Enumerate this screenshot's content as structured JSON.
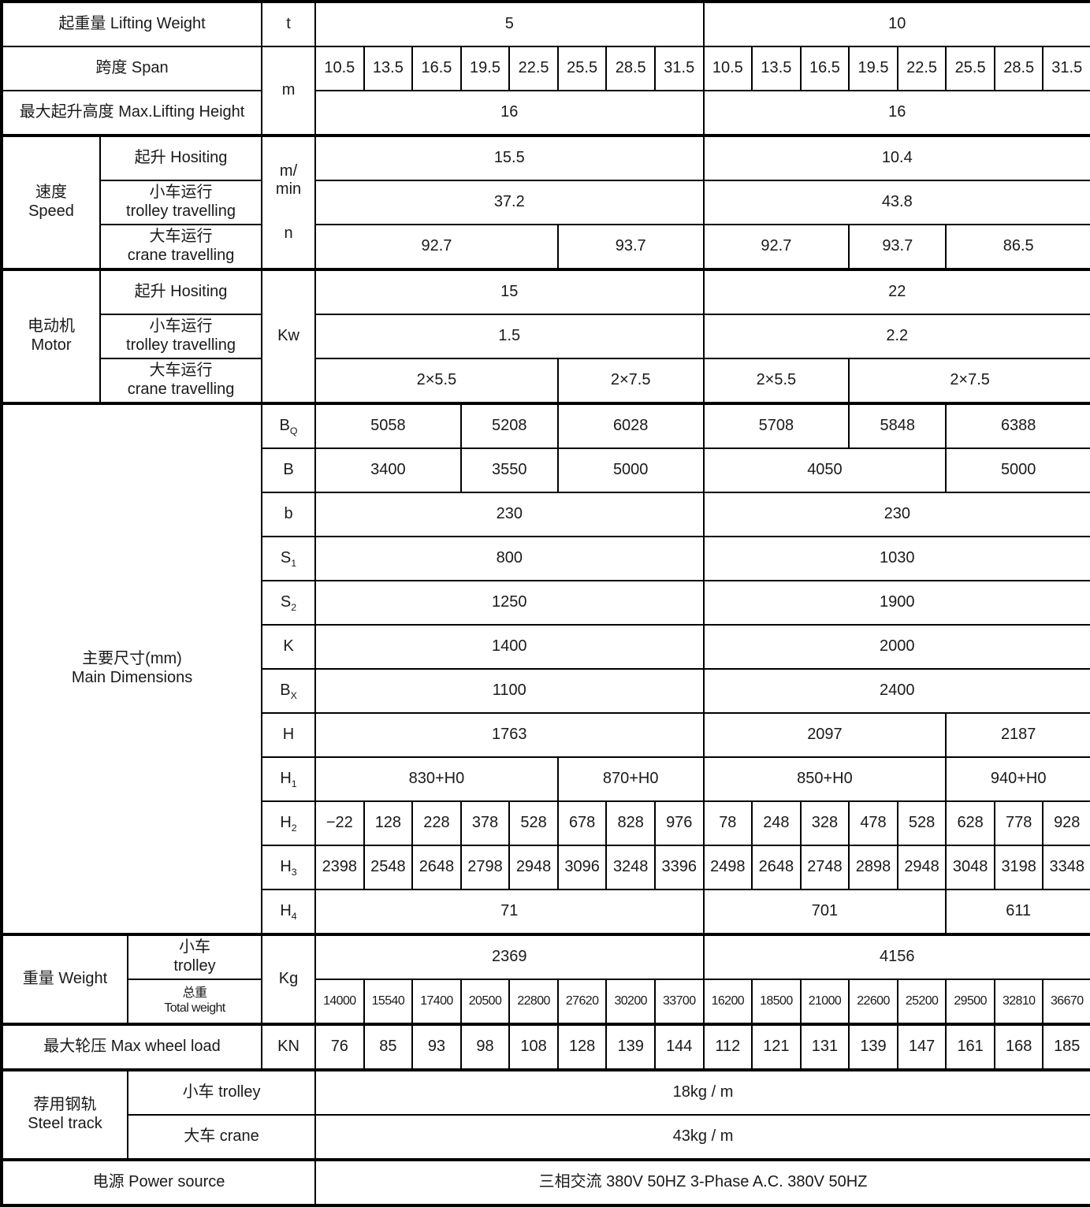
{
  "table": {
    "title_semantic": "crane-specification-table",
    "columns": {
      "label_widths": [
        125,
        35,
        170,
        68
      ],
      "data_count": 16,
      "data_width": 61.5625
    },
    "rows": [
      {
        "cells": [
          {
            "t": "起重量 Lifting Weight",
            "cs": 3,
            "name": "label-lifting-weight"
          },
          {
            "t": "t",
            "name": "unit-lifting-weight"
          },
          {
            "t": "5",
            "cs": 8,
            "name": "lifting-weight-5t-value"
          },
          {
            "t": "10",
            "cs": 8,
            "name": "lifting-weight-10t-value"
          }
        ]
      },
      {
        "cname": "span-value",
        "cells": [
          {
            "t": "跨度 Span",
            "cs": 3,
            "name": "label-span"
          },
          {
            "t": "m",
            "rs": 2,
            "name": "unit-span"
          },
          {
            "t": "10.5"
          },
          {
            "t": "13.5"
          },
          {
            "t": "16.5"
          },
          {
            "t": "19.5"
          },
          {
            "t": "22.5"
          },
          {
            "t": "25.5"
          },
          {
            "t": "28.5"
          },
          {
            "t": "31.5"
          },
          {
            "t": "10.5"
          },
          {
            "t": "13.5"
          },
          {
            "t": "16.5"
          },
          {
            "t": "19.5"
          },
          {
            "t": "22.5"
          },
          {
            "t": "25.5"
          },
          {
            "t": "28.5"
          },
          {
            "t": "31.5"
          }
        ]
      },
      {
        "cells": [
          {
            "t": "最大起升高度 Max.Lifting Height",
            "cs": 3,
            "name": "label-max-lifting-height"
          },
          {
            "t": "16",
            "cs": 8,
            "name": "max-lifting-height-5t"
          },
          {
            "t": "16",
            "cs": 8,
            "name": "max-lifting-height-10t"
          }
        ]
      },
      {
        "sec": true,
        "cells": [
          {
            "lines": [
              "速度",
              "Speed"
            ],
            "rs": 3,
            "name": "section-label-speed"
          },
          {
            "t": "起升 Hositing",
            "cs": 2,
            "name": "label-speed-hoisting"
          },
          {
            "lines": [
              "m/",
              "min",
              "n"
            ],
            "rs": 3,
            "cls": "unit-speed",
            "name": "unit-speed"
          },
          {
            "t": "15.5",
            "cs": 8,
            "name": "speed-hoisting-5t"
          },
          {
            "t": "10.4",
            "cs": 8,
            "name": "speed-hoisting-10t"
          }
        ]
      },
      {
        "cells": [
          {
            "lines": [
              "小车运行",
              "trolley travelling"
            ],
            "cs": 2,
            "name": "label-speed-trolley"
          },
          {
            "t": "37.2",
            "cs": 8,
            "name": "speed-trolley-5t"
          },
          {
            "t": "43.8",
            "cs": 8,
            "name": "speed-trolley-10t"
          }
        ]
      },
      {
        "cname": "speed-crane-value",
        "cells": [
          {
            "lines": [
              "大车运行",
              "crane travelling"
            ],
            "cs": 2,
            "name": "label-speed-crane"
          },
          {
            "t": "92.7",
            "cs": 5
          },
          {
            "t": "93.7",
            "cs": 3
          },
          {
            "t": "92.7",
            "cs": 3
          },
          {
            "t": "93.7",
            "cs": 2
          },
          {
            "t": "86.5",
            "cs": 3
          }
        ]
      },
      {
        "sec": true,
        "cells": [
          {
            "lines": [
              "电动机",
              "Motor"
            ],
            "rs": 3,
            "name": "section-label-motor"
          },
          {
            "t": "起升 Hositing",
            "cs": 2,
            "name": "label-motor-hoisting"
          },
          {
            "t": "Kw",
            "rs": 3,
            "name": "unit-motor"
          },
          {
            "t": "15",
            "cs": 8,
            "name": "motor-hoisting-5t"
          },
          {
            "t": "22",
            "cs": 8,
            "name": "motor-hoisting-10t"
          }
        ]
      },
      {
        "cells": [
          {
            "lines": [
              "小车运行",
              "trolley travelling"
            ],
            "cs": 2,
            "name": "label-motor-trolley"
          },
          {
            "t": "1.5",
            "cs": 8,
            "name": "motor-trolley-5t"
          },
          {
            "t": "2.2",
            "cs": 8,
            "name": "motor-trolley-10t"
          }
        ]
      },
      {
        "cname": "motor-crane-value",
        "cells": [
          {
            "lines": [
              "大车运行",
              "crane travelling"
            ],
            "cs": 2,
            "name": "label-motor-crane"
          },
          {
            "t": "2×5.5",
            "cs": 5
          },
          {
            "t": "2×7.5",
            "cs": 3
          },
          {
            "t": "2×5.5",
            "cs": 3
          },
          {
            "t": "2×7.5",
            "cs": 5
          }
        ]
      },
      {
        "sec": true,
        "cname": "dim-bq-value",
        "cells": [
          {
            "lines": [
              "主要尺寸(mm)",
              "Main Dimensions"
            ],
            "cs": 3,
            "rs": 12,
            "name": "section-label-main-dimensions"
          },
          {
            "base": "B",
            "sub": "Q",
            "name": "dim-label-bq"
          },
          {
            "t": "5058",
            "cs": 3
          },
          {
            "t": "5208",
            "cs": 2
          },
          {
            "t": "6028",
            "cs": 3
          },
          {
            "t": "5708",
            "cs": 3
          },
          {
            "t": "5848",
            "cs": 2
          },
          {
            "t": "6388",
            "cs": 3
          }
        ]
      },
      {
        "cname": "dim-b-value",
        "cells": [
          {
            "t": "B",
            "name": "dim-label-b"
          },
          {
            "t": "3400",
            "cs": 3
          },
          {
            "t": "3550",
            "cs": 2
          },
          {
            "t": "5000",
            "cs": 3
          },
          {
            "t": "4050",
            "cs": 5
          },
          {
            "t": "5000",
            "cs": 3
          }
        ]
      },
      {
        "cname": "dim-b-small-value",
        "cells": [
          {
            "t": "b",
            "name": "dim-label-b-small"
          },
          {
            "t": "230",
            "cs": 8
          },
          {
            "t": "230",
            "cs": 8
          }
        ]
      },
      {
        "cname": "dim-s1-value",
        "cells": [
          {
            "base": "S",
            "sub": "1",
            "name": "dim-label-s1"
          },
          {
            "t": "800",
            "cs": 8
          },
          {
            "t": "1030",
            "cs": 8
          }
        ]
      },
      {
        "cname": "dim-s2-value",
        "cells": [
          {
            "base": "S",
            "sub": "2",
            "name": "dim-label-s2"
          },
          {
            "t": "1250",
            "cs": 8
          },
          {
            "t": "1900",
            "cs": 8
          }
        ]
      },
      {
        "cname": "dim-k-value",
        "cells": [
          {
            "t": "K",
            "name": "dim-label-k"
          },
          {
            "t": "1400",
            "cs": 8
          },
          {
            "t": "2000",
            "cs": 8
          }
        ]
      },
      {
        "cname": "dim-bx-value",
        "cells": [
          {
            "base": "B",
            "sub": "X",
            "name": "dim-label-bx"
          },
          {
            "t": "1100",
            "cs": 8
          },
          {
            "t": "2400",
            "cs": 8
          }
        ]
      },
      {
        "cname": "dim-h-value",
        "cells": [
          {
            "t": "H",
            "name": "dim-label-h"
          },
          {
            "t": "1763",
            "cs": 8
          },
          {
            "t": "2097",
            "cs": 5
          },
          {
            "t": "2187",
            "cs": 3
          }
        ]
      },
      {
        "cname": "dim-h1-value",
        "cells": [
          {
            "base": "H",
            "sub": "1",
            "name": "dim-label-h1"
          },
          {
            "t": "830+H0",
            "cs": 5
          },
          {
            "t": "870+H0",
            "cs": 3
          },
          {
            "t": "850+H0",
            "cs": 5
          },
          {
            "t": "940+H0",
            "cs": 3
          }
        ]
      },
      {
        "cname": "dim-h2-value",
        "cells": [
          {
            "base": "H",
            "sub": "2",
            "name": "dim-label-h2"
          },
          {
            "t": "−22"
          },
          {
            "t": "128"
          },
          {
            "t": "228"
          },
          {
            "t": "378"
          },
          {
            "t": "528"
          },
          {
            "t": "678"
          },
          {
            "t": "828"
          },
          {
            "t": "976"
          },
          {
            "t": "78"
          },
          {
            "t": "248"
          },
          {
            "t": "328"
          },
          {
            "t": "478"
          },
          {
            "t": "528"
          },
          {
            "t": "628"
          },
          {
            "t": "778"
          },
          {
            "t": "928"
          }
        ]
      },
      {
        "cname": "dim-h3-value",
        "cells": [
          {
            "base": "H",
            "sub": "3",
            "name": "dim-label-h3"
          },
          {
            "t": "2398"
          },
          {
            "t": "2548"
          },
          {
            "t": "2648"
          },
          {
            "t": "2798"
          },
          {
            "t": "2948"
          },
          {
            "t": "3096"
          },
          {
            "t": "3248"
          },
          {
            "t": "3396"
          },
          {
            "t": "2498"
          },
          {
            "t": "2648"
          },
          {
            "t": "2748"
          },
          {
            "t": "2898"
          },
          {
            "t": "2948"
          },
          {
            "t": "3048"
          },
          {
            "t": "3198"
          },
          {
            "t": "3348"
          }
        ]
      },
      {
        "cname": "dim-h4-value",
        "cells": [
          {
            "base": "H",
            "sub": "4",
            "name": "dim-label-h4"
          },
          {
            "t": "71",
            "cs": 8
          },
          {
            "t": "701",
            "cs": 5
          },
          {
            "t": "611",
            "cs": 3
          }
        ]
      },
      {
        "sec": true,
        "cells": [
          {
            "t": "重量 Weight",
            "cs": 2,
            "rs": 2,
            "name": "section-label-weight"
          },
          {
            "lines": [
              "小车",
              "trolley"
            ],
            "name": "label-weight-trolley"
          },
          {
            "t": "Kg",
            "rs": 2,
            "name": "unit-weight"
          },
          {
            "t": "2369",
            "cs": 8,
            "name": "weight-trolley-5t"
          },
          {
            "t": "4156",
            "cs": 8,
            "name": "weight-trolley-10t"
          }
        ]
      },
      {
        "cname": "weight-total-value",
        "cls": "sm",
        "cells": [
          {
            "lines": [
              "总重",
              "Total weight"
            ],
            "name": "label-weight-total"
          },
          {
            "t": "14000"
          },
          {
            "t": "15540"
          },
          {
            "t": "17400"
          },
          {
            "t": "20500"
          },
          {
            "t": "22800"
          },
          {
            "t": "27620"
          },
          {
            "t": "30200"
          },
          {
            "t": "33700"
          },
          {
            "t": "16200"
          },
          {
            "t": "18500"
          },
          {
            "t": "21000"
          },
          {
            "t": "22600"
          },
          {
            "t": "25200"
          },
          {
            "t": "29500"
          },
          {
            "t": "32810"
          },
          {
            "t": "36670"
          }
        ]
      },
      {
        "sec": true,
        "cname": "max-wheel-load-value",
        "cells": [
          {
            "t": "最大轮压 Max wheel load",
            "cs": 3,
            "name": "label-max-wheel-load"
          },
          {
            "t": "KN",
            "name": "unit-max-wheel-load"
          },
          {
            "t": "76"
          },
          {
            "t": "85"
          },
          {
            "t": "93"
          },
          {
            "t": "98"
          },
          {
            "t": "108"
          },
          {
            "t": "128"
          },
          {
            "t": "139"
          },
          {
            "t": "144"
          },
          {
            "t": "112"
          },
          {
            "t": "121"
          },
          {
            "t": "131"
          },
          {
            "t": "139"
          },
          {
            "t": "147"
          },
          {
            "t": "161"
          },
          {
            "t": "168"
          },
          {
            "t": "185"
          }
        ]
      },
      {
        "sec": true,
        "cells": [
          {
            "lines": [
              "荐用钢轨",
              "Steel track"
            ],
            "cs": 2,
            "rs": 2,
            "name": "section-label-steel-track"
          },
          {
            "t": "小车 trolley",
            "cs": 2,
            "name": "label-steel-trolley"
          },
          {
            "t": "18kg / m",
            "cs": 16,
            "name": "steel-trolley-value"
          }
        ]
      },
      {
        "cells": [
          {
            "t": "大车 crane",
            "cs": 2,
            "name": "label-steel-crane"
          },
          {
            "t": "43kg / m",
            "cs": 16,
            "name": "steel-crane-value"
          }
        ]
      },
      {
        "sec": true,
        "cells": [
          {
            "t": "电源 Power source",
            "cs": 4,
            "name": "label-power-source"
          },
          {
            "t": "三相交流 380V  50HZ   3-Phase A.C.  380V  50HZ",
            "cs": 16,
            "name": "power-source-value"
          }
        ]
      }
    ]
  }
}
